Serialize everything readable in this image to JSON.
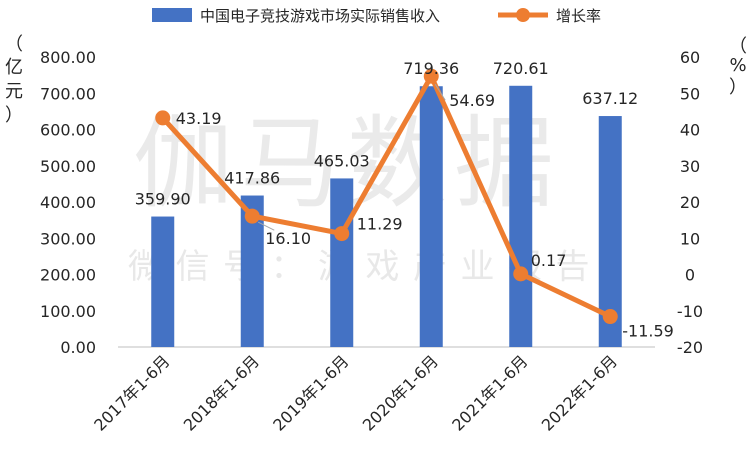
{
  "watermark": {
    "main": "伽马数据",
    "sub": "微信号：游戏产业报告"
  },
  "chart_data": {
    "type": "bar+line",
    "categories": [
      "2017年1-6月",
      "2018年1-6月",
      "2019年1-6月",
      "2020年1-6月",
      "2021年1-6月",
      "2022年1-6月"
    ],
    "series": [
      {
        "name": "中国电子竞技游戏市场实际销售收入",
        "type": "bar",
        "axis": "left",
        "color": "#4472C4",
        "values": [
          359.9,
          417.86,
          465.03,
          719.36,
          720.61,
          637.12
        ],
        "labels": [
          "359.90",
          "417.86",
          "465.03",
          "719.36",
          "720.61",
          "637.12"
        ]
      },
      {
        "name": "增长率",
        "type": "line",
        "axis": "right",
        "color": "#ED7D31",
        "values": [
          43.19,
          16.1,
          11.29,
          54.69,
          0.17,
          -11.59
        ],
        "labels": [
          "43.19",
          "16.10",
          "11.29",
          "54.69",
          "0.17",
          "-11.59"
        ]
      }
    ],
    "y_left": {
      "label": [
        "（",
        "亿",
        "元",
        "）"
      ],
      "ylim": [
        0,
        800
      ],
      "ticks": [
        "0.00",
        "100.00",
        "200.00",
        "300.00",
        "400.00",
        "500.00",
        "600.00",
        "700.00",
        "800.00"
      ]
    },
    "y_right": {
      "label": [
        "（",
        "%",
        "）"
      ],
      "ylim": [
        -20,
        60
      ],
      "ticks": [
        "-20",
        "-10",
        "0",
        "10",
        "20",
        "30",
        "40",
        "50",
        "60"
      ]
    },
    "grid": false,
    "legend": "top"
  }
}
